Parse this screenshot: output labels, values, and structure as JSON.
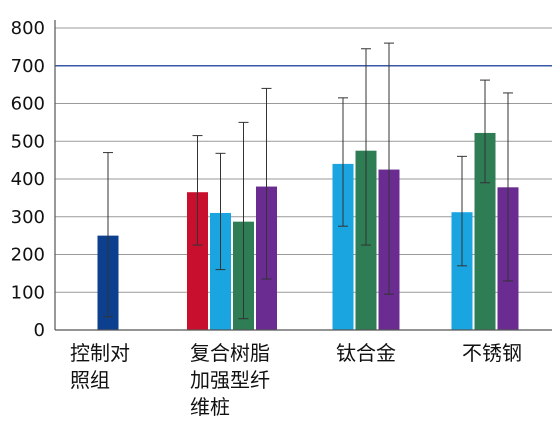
{
  "chart_data": {
    "type": "bar",
    "title": "",
    "xlabel": "",
    "ylabel": "",
    "ylim": [
      0,
      800
    ],
    "yticks": [
      0,
      100,
      200,
      300,
      400,
      500,
      600,
      700,
      800
    ],
    "grid": true,
    "reference_line": 700,
    "categories": [
      {
        "label_lines": [
          "控制对",
          "照组"
        ]
      },
      {
        "label_lines": [
          "复合树脂",
          "加强型纤",
          "维桩"
        ]
      },
      {
        "label_lines": [
          "钛合金"
        ]
      },
      {
        "label_lines": [
          "不锈钢"
        ]
      }
    ],
    "groups": [
      {
        "bars": [
          {
            "value": 250,
            "error_low": 35,
            "error_high": 470,
            "color": "#0d3f8f"
          }
        ]
      },
      {
        "bars": [
          {
            "value": 365,
            "error_low": 225,
            "error_high": 515,
            "color": "#c8102e"
          },
          {
            "value": 310,
            "error_low": 160,
            "error_high": 468,
            "color": "#1aa5e0"
          },
          {
            "value": 287,
            "error_low": 30,
            "error_high": 550,
            "color": "#2e7d55"
          },
          {
            "value": 380,
            "error_low": 135,
            "error_high": 640,
            "color": "#6a2c91"
          }
        ]
      },
      {
        "bars": [
          {
            "value": 440,
            "error_low": 275,
            "error_high": 615,
            "color": "#1aa5e0"
          },
          {
            "value": 475,
            "error_low": 225,
            "error_high": 745,
            "color": "#2e7d55"
          },
          {
            "value": 425,
            "error_low": 95,
            "error_high": 760,
            "color": "#6a2c91"
          }
        ]
      },
      {
        "bars": [
          {
            "value": 312,
            "error_low": 170,
            "error_high": 460,
            "color": "#1aa5e0"
          },
          {
            "value": 522,
            "error_low": 390,
            "error_high": 662,
            "color": "#2e7d55"
          },
          {
            "value": 378,
            "error_low": 130,
            "error_high": 628,
            "color": "#6a2c91"
          }
        ]
      }
    ]
  },
  "colors": {
    "grid": "#9a9a9a",
    "reference_line": "#3b57a8",
    "axis": "#555555"
  }
}
